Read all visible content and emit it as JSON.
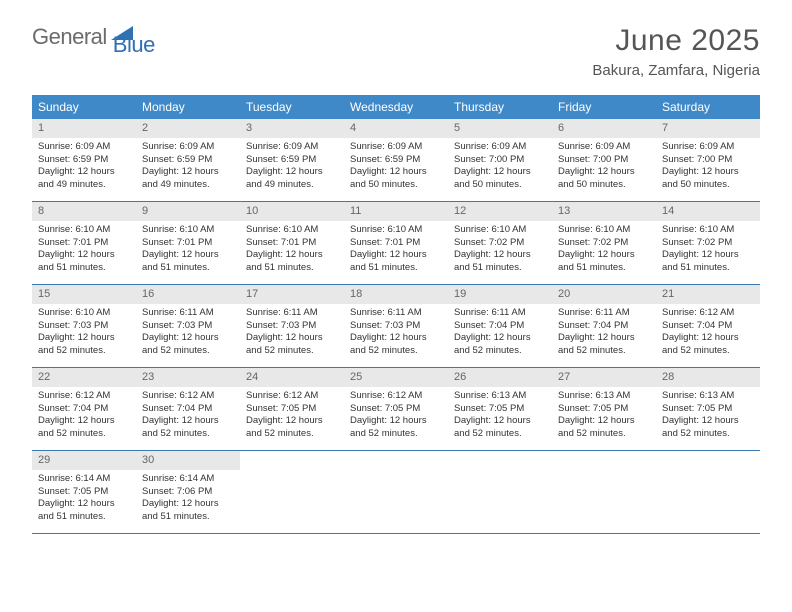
{
  "logo": {
    "text1": "General",
    "text2": "Blue"
  },
  "title": "June 2025",
  "location": "Bakura, Zamfara, Nigeria",
  "accent_color": "#4089c8",
  "rule_color": "#3a7ab0",
  "daynum_bg": "#e8e8e8",
  "weekdays": [
    "Sunday",
    "Monday",
    "Tuesday",
    "Wednesday",
    "Thursday",
    "Friday",
    "Saturday"
  ],
  "days": [
    {
      "n": "1",
      "sr": "6:09 AM",
      "ss": "6:59 PM",
      "dl": "12 hours and 49 minutes."
    },
    {
      "n": "2",
      "sr": "6:09 AM",
      "ss": "6:59 PM",
      "dl": "12 hours and 49 minutes."
    },
    {
      "n": "3",
      "sr": "6:09 AM",
      "ss": "6:59 PM",
      "dl": "12 hours and 49 minutes."
    },
    {
      "n": "4",
      "sr": "6:09 AM",
      "ss": "6:59 PM",
      "dl": "12 hours and 50 minutes."
    },
    {
      "n": "5",
      "sr": "6:09 AM",
      "ss": "7:00 PM",
      "dl": "12 hours and 50 minutes."
    },
    {
      "n": "6",
      "sr": "6:09 AM",
      "ss": "7:00 PM",
      "dl": "12 hours and 50 minutes."
    },
    {
      "n": "7",
      "sr": "6:09 AM",
      "ss": "7:00 PM",
      "dl": "12 hours and 50 minutes."
    },
    {
      "n": "8",
      "sr": "6:10 AM",
      "ss": "7:01 PM",
      "dl": "12 hours and 51 minutes."
    },
    {
      "n": "9",
      "sr": "6:10 AM",
      "ss": "7:01 PM",
      "dl": "12 hours and 51 minutes."
    },
    {
      "n": "10",
      "sr": "6:10 AM",
      "ss": "7:01 PM",
      "dl": "12 hours and 51 minutes."
    },
    {
      "n": "11",
      "sr": "6:10 AM",
      "ss": "7:01 PM",
      "dl": "12 hours and 51 minutes."
    },
    {
      "n": "12",
      "sr": "6:10 AM",
      "ss": "7:02 PM",
      "dl": "12 hours and 51 minutes."
    },
    {
      "n": "13",
      "sr": "6:10 AM",
      "ss": "7:02 PM",
      "dl": "12 hours and 51 minutes."
    },
    {
      "n": "14",
      "sr": "6:10 AM",
      "ss": "7:02 PM",
      "dl": "12 hours and 51 minutes."
    },
    {
      "n": "15",
      "sr": "6:10 AM",
      "ss": "7:03 PM",
      "dl": "12 hours and 52 minutes."
    },
    {
      "n": "16",
      "sr": "6:11 AM",
      "ss": "7:03 PM",
      "dl": "12 hours and 52 minutes."
    },
    {
      "n": "17",
      "sr": "6:11 AM",
      "ss": "7:03 PM",
      "dl": "12 hours and 52 minutes."
    },
    {
      "n": "18",
      "sr": "6:11 AM",
      "ss": "7:03 PM",
      "dl": "12 hours and 52 minutes."
    },
    {
      "n": "19",
      "sr": "6:11 AM",
      "ss": "7:04 PM",
      "dl": "12 hours and 52 minutes."
    },
    {
      "n": "20",
      "sr": "6:11 AM",
      "ss": "7:04 PM",
      "dl": "12 hours and 52 minutes."
    },
    {
      "n": "21",
      "sr": "6:12 AM",
      "ss": "7:04 PM",
      "dl": "12 hours and 52 minutes."
    },
    {
      "n": "22",
      "sr": "6:12 AM",
      "ss": "7:04 PM",
      "dl": "12 hours and 52 minutes."
    },
    {
      "n": "23",
      "sr": "6:12 AM",
      "ss": "7:04 PM",
      "dl": "12 hours and 52 minutes."
    },
    {
      "n": "24",
      "sr": "6:12 AM",
      "ss": "7:05 PM",
      "dl": "12 hours and 52 minutes."
    },
    {
      "n": "25",
      "sr": "6:12 AM",
      "ss": "7:05 PM",
      "dl": "12 hours and 52 minutes."
    },
    {
      "n": "26",
      "sr": "6:13 AM",
      "ss": "7:05 PM",
      "dl": "12 hours and 52 minutes."
    },
    {
      "n": "27",
      "sr": "6:13 AM",
      "ss": "7:05 PM",
      "dl": "12 hours and 52 minutes."
    },
    {
      "n": "28",
      "sr": "6:13 AM",
      "ss": "7:05 PM",
      "dl": "12 hours and 52 minutes."
    },
    {
      "n": "29",
      "sr": "6:14 AM",
      "ss": "7:05 PM",
      "dl": "12 hours and 51 minutes."
    },
    {
      "n": "30",
      "sr": "6:14 AM",
      "ss": "7:06 PM",
      "dl": "12 hours and 51 minutes."
    }
  ],
  "labels": {
    "sunrise": "Sunrise: ",
    "sunset": "Sunset: ",
    "daylight": "Daylight: "
  },
  "first_day_offset": 0,
  "trailing_empty": 5
}
